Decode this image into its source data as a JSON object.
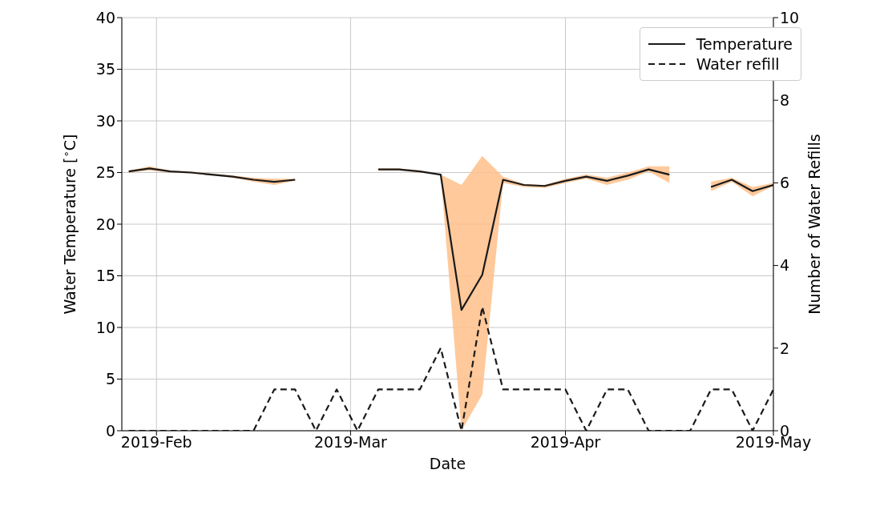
{
  "chart_data": {
    "type": "line",
    "xlabel": "Date",
    "ylabel": "Water Temperature [$^{∘}$C]",
    "y2label": "Number of Water Refills",
    "x": [
      "2019-01-28",
      "2019-01-31",
      "2019-02-03",
      "2019-02-06",
      "2019-02-09",
      "2019-02-12",
      "2019-02-15",
      "2019-02-18",
      "2019-02-21",
      "2019-02-24",
      "2019-02-27",
      "2019-03-02",
      "2019-03-05",
      "2019-03-08",
      "2019-03-11",
      "2019-03-14",
      "2019-03-17",
      "2019-03-20",
      "2019-03-23",
      "2019-03-26",
      "2019-03-29",
      "2019-04-01",
      "2019-04-04",
      "2019-04-07",
      "2019-04-10",
      "2019-04-13",
      "2019-04-16",
      "2019-04-19",
      "2019-04-22",
      "2019-04-25",
      "2019-04-28",
      "2019-05-01"
    ],
    "series": [
      {
        "name": "Temperature",
        "color": "#1a1a1a",
        "line_style": "solid",
        "values": [
          25.1,
          25.4,
          25.1,
          25.0,
          24.8,
          24.6,
          24.3,
          24.1,
          24.3,
          null,
          null,
          null,
          25.3,
          25.3,
          25.1,
          24.8,
          11.7,
          15.1,
          24.3,
          23.8,
          23.7,
          24.2,
          24.6,
          24.2,
          24.7,
          25.3,
          24.8,
          null,
          23.6,
          24.3,
          23.2,
          23.8
        ],
        "lower": [
          25.0,
          25.2,
          25.0,
          24.9,
          24.7,
          24.5,
          24.1,
          23.8,
          24.2,
          null,
          null,
          null,
          25.2,
          25.2,
          25.0,
          24.8,
          0,
          3.5,
          24.0,
          23.6,
          23.5,
          24.0,
          24.4,
          23.8,
          24.3,
          25.1,
          24.0,
          null,
          23.2,
          24.1,
          22.7,
          23.7
        ],
        "upper": [
          25.2,
          25.6,
          25.2,
          25.1,
          24.9,
          24.7,
          24.5,
          24.4,
          24.4,
          null,
          null,
          null,
          25.4,
          25.4,
          25.2,
          24.8,
          23.8,
          26.6,
          24.6,
          23.9,
          23.8,
          24.4,
          24.8,
          24.5,
          25.0,
          25.6,
          25.6,
          null,
          24.1,
          24.5,
          23.6,
          24.0
        ]
      },
      {
        "name": "Water refill",
        "color": "#1a1a1a",
        "line_style": "dashed",
        "axis": "y2",
        "values": [
          0,
          0,
          0,
          0,
          0,
          0,
          0,
          1,
          1,
          0,
          1,
          0,
          1,
          1,
          1,
          2,
          0,
          3,
          1,
          1,
          1,
          1,
          0,
          1,
          1,
          0,
          0,
          0,
          1,
          1,
          0,
          1
        ]
      }
    ],
    "xlim": [
      "2019-01-27",
      "2019-05-01"
    ],
    "xticks": [
      {
        "value": "2019-02-01",
        "label": "2019-Feb"
      },
      {
        "value": "2019-03-01",
        "label": "2019-Mar"
      },
      {
        "value": "2019-04-01",
        "label": "2019-Apr"
      },
      {
        "value": "2019-05-01",
        "label": "2019-May"
      }
    ],
    "ylim": [
      0,
      40
    ],
    "yticks": [
      0,
      5,
      10,
      15,
      20,
      25,
      30,
      35,
      40
    ],
    "y2lim": [
      0,
      10
    ],
    "y2ticks": [
      0,
      2,
      4,
      6,
      8,
      10
    ],
    "grid": true,
    "legend": "top right",
    "marker": "none"
  }
}
